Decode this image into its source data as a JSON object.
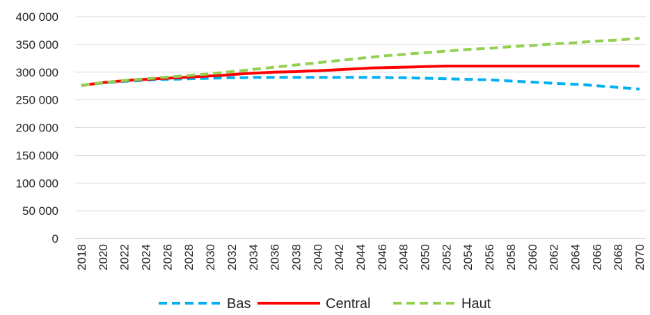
{
  "chart_data": {
    "type": "line",
    "title": "",
    "xlabel": "",
    "ylabel": "",
    "ylim": [
      0,
      400000
    ],
    "yticks": [
      "0",
      "50 000",
      "100 000",
      "150 000",
      "200 000",
      "250 000",
      "300 000",
      "350 000",
      "400 000"
    ],
    "xtick_labels": [
      "2018",
      "2020",
      "2022",
      "2024",
      "2026",
      "2028",
      "2030",
      "2032",
      "2034",
      "2036",
      "2038",
      "2040",
      "2042",
      "2044",
      "2046",
      "2048",
      "2050",
      "2052",
      "2054",
      "2056",
      "2058",
      "2060",
      "2062",
      "2064",
      "2066",
      "2068",
      "2070"
    ],
    "grid": true,
    "legend_position": "bottom",
    "x": [
      2018,
      2019,
      2020,
      2021,
      2022,
      2023,
      2024,
      2025,
      2026,
      2027,
      2028,
      2029,
      2030,
      2031,
      2032,
      2033,
      2034,
      2035,
      2036,
      2037,
      2038,
      2039,
      2040,
      2041,
      2042,
      2043,
      2044,
      2045,
      2046,
      2047,
      2048,
      2049,
      2050,
      2051,
      2052,
      2053,
      2054,
      2055,
      2056,
      2057,
      2058,
      2059,
      2060,
      2061,
      2062,
      2063,
      2064,
      2065,
      2066,
      2067,
      2068,
      2069,
      2070
    ],
    "series": [
      {
        "name": "Bas",
        "color": "#00b0f0",
        "style": "dashed",
        "values": [
          276000,
          278500,
          280500,
          282000,
          283500,
          284500,
          285500,
          286500,
          287000,
          287500,
          288000,
          288500,
          289000,
          289500,
          290000,
          290000,
          290500,
          290500,
          290500,
          290500,
          290500,
          290500,
          290500,
          290500,
          290500,
          290500,
          290500,
          290500,
          290500,
          290000,
          290000,
          289500,
          289000,
          288500,
          288000,
          287500,
          287000,
          286500,
          286000,
          285000,
          284000,
          283000,
          282000,
          281000,
          280000,
          279000,
          278000,
          277000,
          275500,
          274000,
          272500,
          271000,
          269500
        ]
      },
      {
        "name": "Central",
        "color": "#ff0000",
        "style": "solid",
        "values": [
          276000,
          278500,
          281000,
          283000,
          284500,
          286000,
          287000,
          288000,
          289000,
          290000,
          291000,
          292000,
          293000,
          294000,
          295500,
          297000,
          298000,
          299000,
          300000,
          300500,
          301000,
          302000,
          302500,
          303500,
          304500,
          305500,
          306500,
          307500,
          308000,
          308500,
          309000,
          309500,
          310000,
          310500,
          311000,
          311000,
          311000,
          311000,
          311000,
          311000,
          311000,
          311000,
          311000,
          311000,
          311000,
          311000,
          311000,
          311000,
          311000,
          311000,
          311000,
          311000,
          311000
        ]
      },
      {
        "name": "Haut",
        "color": "#92d050",
        "style": "dashed",
        "values": [
          276000,
          278500,
          281000,
          283000,
          285000,
          286500,
          288000,
          289500,
          291000,
          292500,
          294000,
          295500,
          297000,
          299000,
          301000,
          303000,
          305000,
          307000,
          309000,
          311000,
          313000,
          315000,
          317000,
          319000,
          321000,
          323000,
          325000,
          327000,
          329000,
          330500,
          332000,
          333500,
          335000,
          336500,
          338000,
          339500,
          341000,
          342000,
          343000,
          344500,
          346000,
          347000,
          348000,
          349500,
          351000,
          352000,
          353000,
          354500,
          356000,
          357000,
          358000,
          359500,
          361000
        ]
      }
    ]
  }
}
